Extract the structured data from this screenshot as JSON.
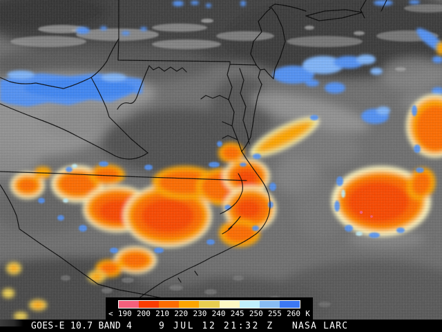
{
  "footer": {
    "product_label": "GOES-E 10.7 BAND 4",
    "timestamp_label": "9 JUL 12 21:32 Z",
    "credit_label": "NASA LARC"
  },
  "legend": {
    "prefix_label": "<",
    "unit_label": "K",
    "tick_labels": [
      "190",
      "200",
      "210",
      "220",
      "230",
      "240",
      "245",
      "250",
      "255",
      "260"
    ],
    "segment_colors": [
      "#f4607c",
      "#fa3c00",
      "#fc6c00",
      "#fca400",
      "#e8ce50",
      "#fcf8c4",
      "#c0f0fc",
      "#88bcf4",
      "#3c78f4"
    ],
    "background": "#000000"
  },
  "scene": {
    "palette": {
      "base_gray": "#6f6f6f",
      "dark_cloud": "#3c3c3c",
      "light_cloud": "#9a9a9a",
      "enhanced_blue": "#5391f2",
      "enhanced_blue_light": "#7fb3f7",
      "fringe_cream": "#fdf5c0",
      "fringe_gold": "#eccf52",
      "amber": "#fca400",
      "orange": "#fc6c00",
      "core_red_orange": "#f84a00",
      "coldest_pink": "#f4607c",
      "map_line": "#000000"
    }
  }
}
